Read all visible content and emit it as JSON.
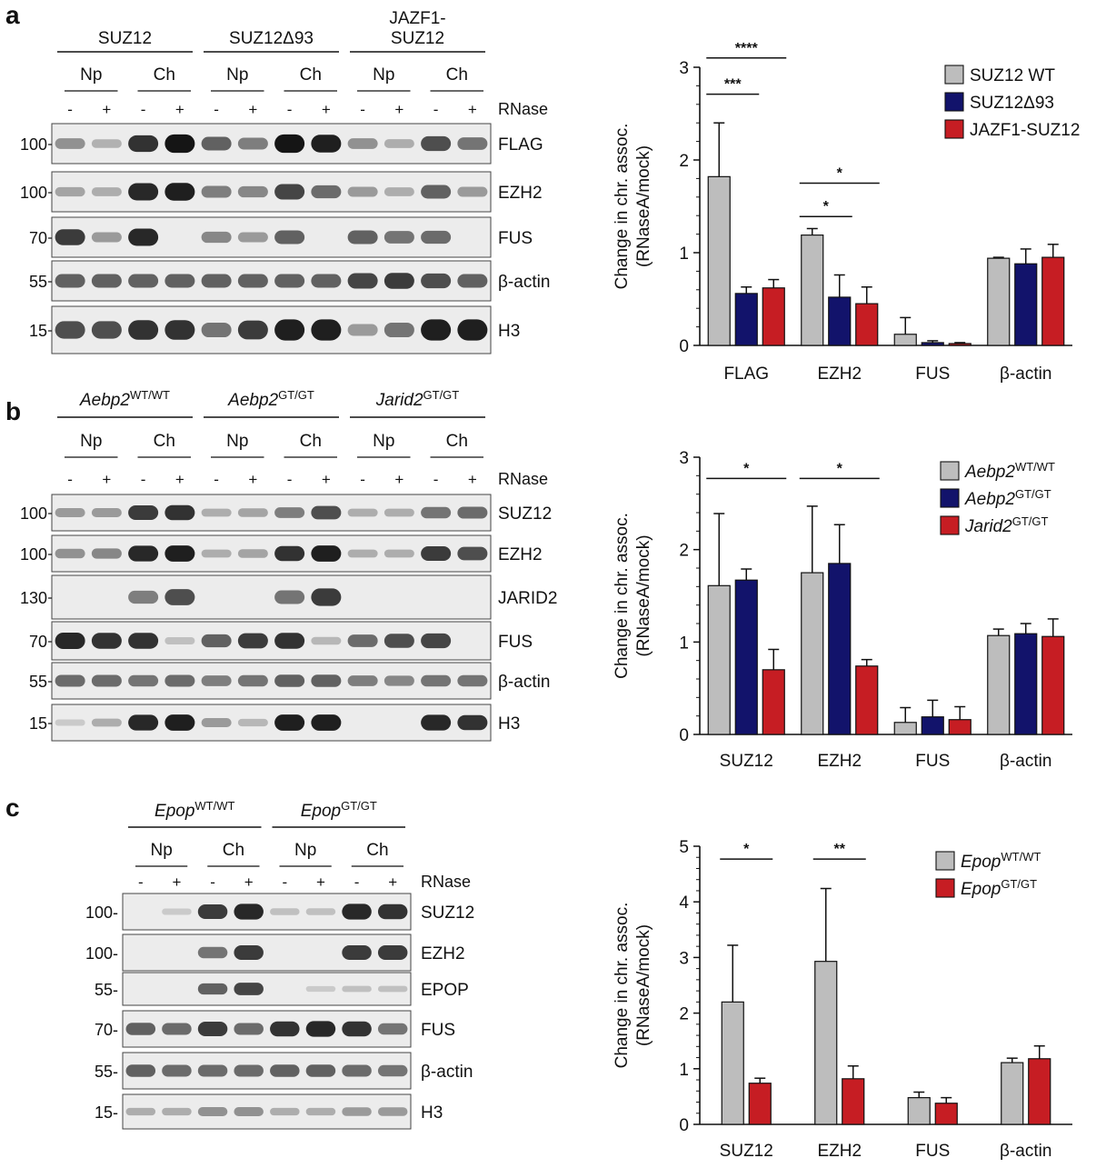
{
  "panels": [
    {
      "id": "a",
      "letter": "a",
      "blot": {
        "groups": [
          {
            "label": "SUZ12",
            "italic": "",
            "sup": ""
          },
          {
            "label": "SUZ12Δ93",
            "italic": "",
            "sup": ""
          },
          {
            "label": "JAZF1-\nSUZ12",
            "italic": "",
            "sup": ""
          }
        ],
        "fractions": [
          "Np",
          "Ch",
          "Np",
          "Ch",
          "Np",
          "Ch"
        ],
        "rnase_label": "RNase",
        "lane_signs": [
          "-",
          "+",
          "-",
          "+",
          "-",
          "+",
          "-",
          "+",
          "-",
          "+",
          "-",
          "+"
        ],
        "rows": [
          {
            "protein": "FLAG",
            "marker": "100",
            "intensity": [
              0.35,
              0.18,
              0.85,
              1.0,
              0.6,
              0.45,
              1.0,
              0.95,
              0.35,
              0.2,
              0.7,
              0.5
            ]
          },
          {
            "protein": "EZH2",
            "marker": "100",
            "intensity": [
              0.25,
              0.2,
              0.9,
              0.95,
              0.45,
              0.4,
              0.75,
              0.55,
              0.3,
              0.2,
              0.6,
              0.3
            ]
          },
          {
            "protein": "FUS",
            "marker": "70",
            "intensity": [
              0.8,
              0.3,
              0.9,
              0.0,
              0.4,
              0.3,
              0.6,
              0.0,
              0.6,
              0.5,
              0.55,
              0.0
            ]
          },
          {
            "protein": "β-actin",
            "marker": "55",
            "intensity": [
              0.6,
              0.6,
              0.6,
              0.6,
              0.6,
              0.6,
              0.6,
              0.6,
              0.75,
              0.8,
              0.7,
              0.6
            ]
          },
          {
            "protein": "H3",
            "marker": "15",
            "intensity": [
              0.7,
              0.7,
              0.85,
              0.85,
              0.5,
              0.8,
              0.95,
              0.95,
              0.3,
              0.5,
              0.95,
              0.95
            ]
          }
        ]
      },
      "chart_data": {
        "type": "bar",
        "title": "",
        "ylabel": "Change in chr. assoc.\n(RNaseA/mock)",
        "xlabel": "",
        "ylim": [
          0,
          3
        ],
        "yticks": [
          "0",
          "1",
          "2",
          "3"
        ],
        "categories": [
          "FLAG",
          "EZH2",
          "FUS",
          "β-actin"
        ],
        "series": [
          {
            "name": "SUZ12 WT",
            "italic": "",
            "sup": "",
            "color": "#bdbdbd",
            "values": [
              1.82,
              1.19,
              0.12,
              0.94
            ],
            "errors": [
              0.58,
              0.07,
              0.18,
              0.01
            ]
          },
          {
            "name": "SUZ12Δ93",
            "italic": "",
            "sup": "",
            "color": "#12136b",
            "values": [
              0.56,
              0.52,
              0.03,
              0.88
            ],
            "errors": [
              0.07,
              0.24,
              0.02,
              0.16
            ]
          },
          {
            "name": "JAZF1-SUZ12",
            "italic": "",
            "sup": "",
            "color": "#c61d23",
            "values": [
              0.62,
              0.45,
              0.02,
              0.95
            ],
            "errors": [
              0.09,
              0.18,
              0.01,
              0.14
            ]
          }
        ],
        "significance": [
          {
            "cat": 0,
            "from": 0,
            "to": 1,
            "label": "***",
            "y": 2.71
          },
          {
            "cat": 0,
            "from": 0,
            "to": 2,
            "label": "****",
            "y": 3.1
          },
          {
            "cat": 1,
            "from": 0,
            "to": 1,
            "label": "*",
            "y": 1.39
          },
          {
            "cat": 1,
            "from": 0,
            "to": 2,
            "label": "*",
            "y": 1.75
          }
        ]
      }
    },
    {
      "id": "b",
      "letter": "b",
      "blot": {
        "groups": [
          {
            "label": "",
            "italic": "Aebp2",
            "sup": "WT/WT"
          },
          {
            "label": "",
            "italic": "Aebp2",
            "sup": "GT/GT"
          },
          {
            "label": "",
            "italic": "Jarid2",
            "sup": "GT/GT"
          }
        ],
        "fractions": [
          "Np",
          "Ch",
          "Np",
          "Ch",
          "Np",
          "Ch"
        ],
        "rnase_label": "RNase",
        "lane_signs": [
          "-",
          "+",
          "-",
          "+",
          "-",
          "+",
          "-",
          "+",
          "-",
          "+",
          "-",
          "+"
        ],
        "rows": [
          {
            "protein": "SUZ12",
            "marker": "100",
            "intensity": [
              0.3,
              0.3,
              0.8,
              0.85,
              0.2,
              0.25,
              0.45,
              0.7,
              0.2,
              0.2,
              0.5,
              0.55
            ]
          },
          {
            "protein": "EZH2",
            "marker": "100",
            "intensity": [
              0.35,
              0.4,
              0.9,
              0.95,
              0.2,
              0.25,
              0.85,
              0.95,
              0.2,
              0.2,
              0.8,
              0.7
            ]
          },
          {
            "protein": "JARID2",
            "marker": "130",
            "intensity": [
              0.0,
              0.0,
              0.45,
              0.7,
              0.0,
              0.0,
              0.5,
              0.8,
              0.0,
              0.0,
              0.0,
              0.0
            ]
          },
          {
            "protein": "FUS",
            "marker": "70",
            "intensity": [
              0.9,
              0.85,
              0.85,
              0.1,
              0.6,
              0.8,
              0.85,
              0.15,
              0.55,
              0.7,
              0.75,
              0.0
            ]
          },
          {
            "protein": "β-actin",
            "marker": "55",
            "intensity": [
              0.55,
              0.55,
              0.5,
              0.55,
              0.45,
              0.5,
              0.6,
              0.6,
              0.45,
              0.4,
              0.5,
              0.5
            ]
          },
          {
            "protein": "H3",
            "marker": "15",
            "intensity": [
              0.05,
              0.2,
              0.9,
              0.95,
              0.3,
              0.15,
              0.95,
              0.95,
              0.0,
              0.0,
              0.9,
              0.85
            ]
          }
        ]
      },
      "chart_data": {
        "type": "bar",
        "title": "",
        "ylabel": "Change in chr. assoc.\n(RNaseA/mock)",
        "xlabel": "",
        "ylim": [
          0,
          3
        ],
        "yticks": [
          "0",
          "1",
          "2",
          "3"
        ],
        "categories": [
          "SUZ12",
          "EZH2",
          "FUS",
          "β-actin"
        ],
        "series": [
          {
            "name": "",
            "italic": "Aebp2",
            "sup": "WT/WT",
            "color": "#bdbdbd",
            "values": [
              1.61,
              1.75,
              0.13,
              1.07
            ],
            "errors": [
              0.78,
              0.72,
              0.16,
              0.07
            ]
          },
          {
            "name": "",
            "italic": "Aebp2",
            "sup": "GT/GT",
            "color": "#12136b",
            "values": [
              1.67,
              1.85,
              0.19,
              1.09
            ],
            "errors": [
              0.12,
              0.42,
              0.18,
              0.11
            ]
          },
          {
            "name": "",
            "italic": "Jarid2",
            "sup": "GT/GT",
            "color": "#c61d23",
            "values": [
              0.7,
              0.74,
              0.16,
              1.06
            ],
            "errors": [
              0.22,
              0.07,
              0.14,
              0.19
            ]
          }
        ],
        "significance": [
          {
            "cat": 0,
            "from": 0,
            "to": 2,
            "label": "*",
            "y": 2.77
          },
          {
            "cat": 1,
            "from": 0,
            "to": 2,
            "label": "*",
            "y": 2.77
          }
        ]
      }
    },
    {
      "id": "c",
      "letter": "c",
      "blot": {
        "groups": [
          {
            "label": "",
            "italic": "Epop",
            "sup": "WT/WT"
          },
          {
            "label": "",
            "italic": "Epop",
            "sup": "GT/GT"
          }
        ],
        "fractions": [
          "Np",
          "Ch",
          "Np",
          "Ch"
        ],
        "rnase_label": "RNase",
        "lane_signs": [
          "-",
          "+",
          "-",
          "+",
          "-",
          "+",
          "-",
          "+"
        ],
        "rows": [
          {
            "protein": "SUZ12",
            "marker": "100-",
            "intensity": [
              0.0,
              0.05,
              0.8,
              0.9,
              0.1,
              0.1,
              0.9,
              0.85
            ]
          },
          {
            "protein": "EZH2",
            "marker": "100-",
            "intensity": [
              0.0,
              0.0,
              0.5,
              0.8,
              0.0,
              0.0,
              0.8,
              0.8
            ]
          },
          {
            "protein": "EPOP",
            "marker": "55-",
            "intensity": [
              0.0,
              0.0,
              0.6,
              0.75,
              0.0,
              0.05,
              0.1,
              0.1
            ]
          },
          {
            "protein": "FUS",
            "marker": "70-",
            "intensity": [
              0.6,
              0.55,
              0.8,
              0.55,
              0.85,
              0.9,
              0.85,
              0.5
            ]
          },
          {
            "protein": "β-actin",
            "marker": "55-",
            "intensity": [
              0.6,
              0.55,
              0.55,
              0.55,
              0.6,
              0.6,
              0.55,
              0.5
            ]
          },
          {
            "protein": "H3",
            "marker": "15-",
            "intensity": [
              0.2,
              0.2,
              0.35,
              0.35,
              0.2,
              0.2,
              0.3,
              0.3
            ]
          }
        ]
      },
      "chart_data": {
        "type": "bar",
        "title": "",
        "ylabel": "Change in chr. assoc.\n(RNaseA/mock)",
        "xlabel": "",
        "ylim": [
          0,
          5
        ],
        "yticks": [
          "0",
          "1",
          "2",
          "3",
          "4",
          "5"
        ],
        "categories": [
          "SUZ12",
          "EZH2",
          "FUS",
          "β-actin"
        ],
        "series": [
          {
            "name": "",
            "italic": "Epop",
            "sup": "WT/WT",
            "color": "#bdbdbd",
            "values": [
              2.2,
              2.93,
              0.48,
              1.11
            ],
            "errors": [
              1.02,
              1.31,
              0.1,
              0.08
            ]
          },
          {
            "name": "",
            "italic": "Epop",
            "sup": "GT/GT",
            "color": "#c61d23",
            "values": [
              0.74,
              0.82,
              0.38,
              1.18
            ],
            "errors": [
              0.09,
              0.23,
              0.1,
              0.23
            ]
          }
        ],
        "significance": [
          {
            "cat": 0,
            "from": 0,
            "to": 1,
            "label": "*",
            "y": 4.77
          },
          {
            "cat": 1,
            "from": 0,
            "to": 1,
            "label": "**",
            "y": 4.77
          }
        ]
      }
    }
  ]
}
